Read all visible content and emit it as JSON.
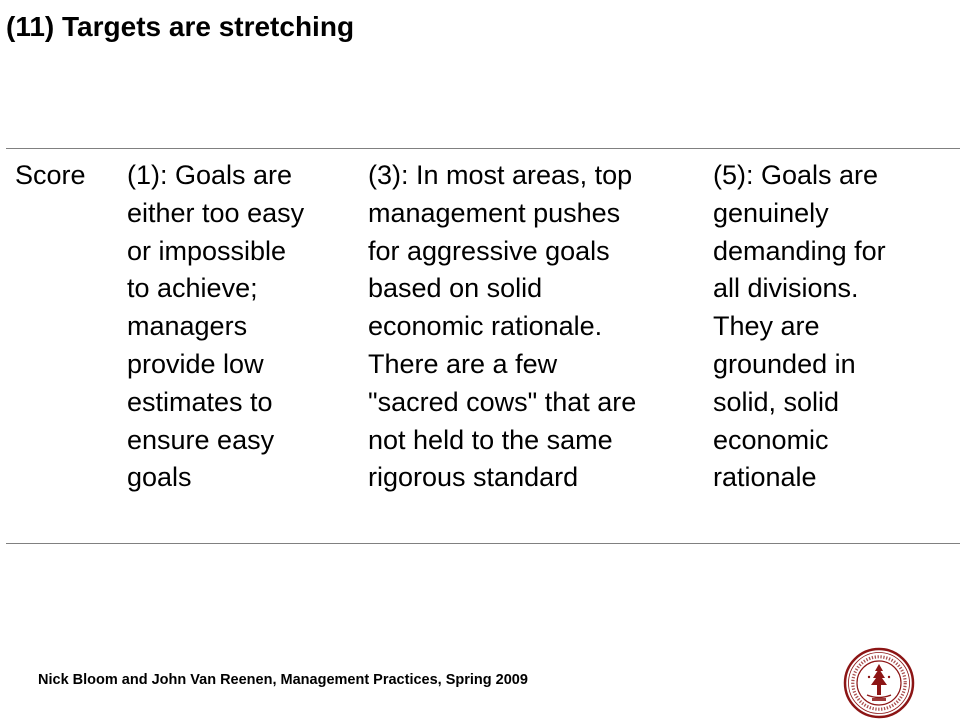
{
  "slide": {
    "title": "(11) Targets are stretching"
  },
  "table": {
    "header_label": "Score",
    "levels": [
      {
        "lines": [
          "(1): Goals are",
          "either too easy",
          "or impossible",
          "to achieve;",
          "managers",
          "provide low",
          "estimates to",
          "ensure easy",
          "goals"
        ]
      },
      {
        "lines": [
          "(3): In most areas, top",
          "management pushes",
          "for aggressive goals",
          "based on solid",
          "economic rationale.",
          "There are a few",
          "\"sacred cows\" that are",
          "not held to the same",
          "rigorous standard"
        ]
      },
      {
        "lines": [
          "(5): Goals are",
          "genuinely",
          "demanding for",
          "all divisions.",
          "They are",
          "grounded in",
          "solid, solid",
          "economic",
          "rationale"
        ]
      }
    ]
  },
  "footer": {
    "text": "Nick Bloom and John Van Reenen, Management Practices, Spring 2009"
  },
  "seal": {
    "icon": "stanford-seal-icon",
    "color": "#8c1515"
  }
}
